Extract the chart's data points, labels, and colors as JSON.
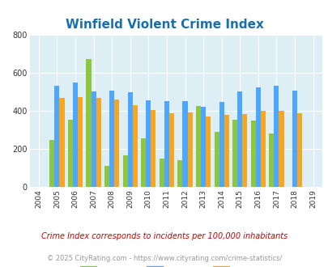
{
  "title": "Winfield Violent Crime Index",
  "years": [
    2004,
    2005,
    2006,
    2007,
    2008,
    2009,
    2010,
    2011,
    2012,
    2013,
    2014,
    2015,
    2016,
    2017,
    2018,
    2019
  ],
  "winfield": [
    null,
    245,
    355,
    670,
    110,
    165,
    255,
    148,
    142,
    425,
    288,
    352,
    348,
    282,
    null,
    null
  ],
  "missouri": [
    null,
    530,
    548,
    503,
    508,
    498,
    455,
    450,
    452,
    423,
    445,
    500,
    522,
    532,
    505,
    null
  ],
  "national": [
    null,
    468,
    474,
    468,
    458,
    428,
    402,
    388,
    390,
    368,
    378,
    384,
    398,
    400,
    385,
    null
  ],
  "winfield_color": "#8dc63f",
  "missouri_color": "#4da6ff",
  "national_color": "#f5a623",
  "bg_color": "#deeef5",
  "ylim": [
    0,
    800
  ],
  "yticks": [
    0,
    200,
    400,
    600,
    800
  ],
  "title_color": "#1a6fad",
  "title_fontsize": 11,
  "footnote1": "Crime Index corresponds to incidents per 100,000 inhabitants",
  "footnote2": "© 2025 CityRating.com - https://www.cityrating.com/crime-statistics/",
  "footnote1_color": "#cc0000",
  "footnote2_color": "#999999"
}
